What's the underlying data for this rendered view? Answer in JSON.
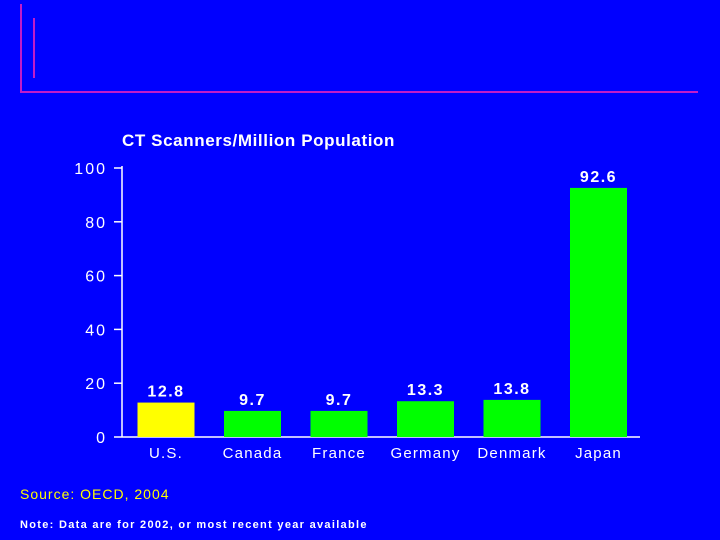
{
  "chart_data": {
    "type": "bar",
    "title": "CT Scanners/Million Population",
    "categories": [
      "U.S.",
      "Canada",
      "France",
      "Germany",
      "Denmark",
      "Japan"
    ],
    "values": [
      12.8,
      9.7,
      9.7,
      13.3,
      13.8,
      92.6
    ],
    "value_labels": [
      "12.8",
      "9.7",
      "9.7",
      "13.3",
      "13.8",
      "92.6"
    ],
    "bar_colors": [
      "#ffff00",
      "#00ff00",
      "#00ff00",
      "#00ff00",
      "#00ff00",
      "#00ff00"
    ],
    "ylim": [
      0,
      100
    ],
    "yticks": [
      0,
      20,
      40,
      60,
      80,
      100
    ],
    "xlabel": "",
    "ylabel": "",
    "grid": false
  },
  "footer": {
    "source": "Source: OECD, 2004",
    "note": "Note: Data are for 2002, or most recent year available"
  },
  "colors": {
    "background": "#0000ff",
    "frame": "#c21cc8",
    "text": "#ffffff",
    "highlight": "#ffff00"
  }
}
